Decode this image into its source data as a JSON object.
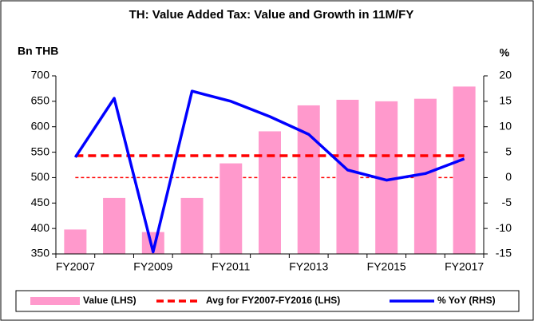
{
  "chart_data": {
    "type": "combo",
    "title": "TH: Value Added Tax: Value and Growth in 11M/FY",
    "y_label": "Bn THB",
    "y2_label": "%",
    "categories": [
      "FY2007",
      null,
      "FY2009",
      null,
      "FY2011",
      null,
      "FY2013",
      null,
      "FY2015",
      null,
      "FY2017"
    ],
    "ylim": [
      350,
      700
    ],
    "yticks": [
      350,
      400,
      450,
      500,
      550,
      600,
      650,
      700
    ],
    "y2lim": [
      -15,
      20
    ],
    "y2ticks": [
      -15,
      -10,
      -5,
      0,
      5,
      10,
      15,
      20
    ],
    "reference_line": {
      "axis": "y2",
      "value": 0,
      "color": "#ff0000"
    },
    "series": [
      {
        "name": "Value (LHS)",
        "type": "bar",
        "color": "#ff99cc",
        "values": [
          398,
          460,
          393,
          460,
          528,
          591,
          642,
          653,
          650,
          655,
          679
        ]
      },
      {
        "name": "Avg for FY2007-FY2016 (LHS)",
        "type": "hline",
        "color": "#ff0000",
        "value": 543
      },
      {
        "name": "% YoY (RHS)",
        "type": "line",
        "axis": "y2",
        "color": "#0000ff",
        "values": [
          4.0,
          15.6,
          -14.6,
          17.0,
          15.0,
          12.0,
          8.5,
          1.5,
          -0.5,
          0.8,
          3.7
        ]
      }
    ]
  }
}
